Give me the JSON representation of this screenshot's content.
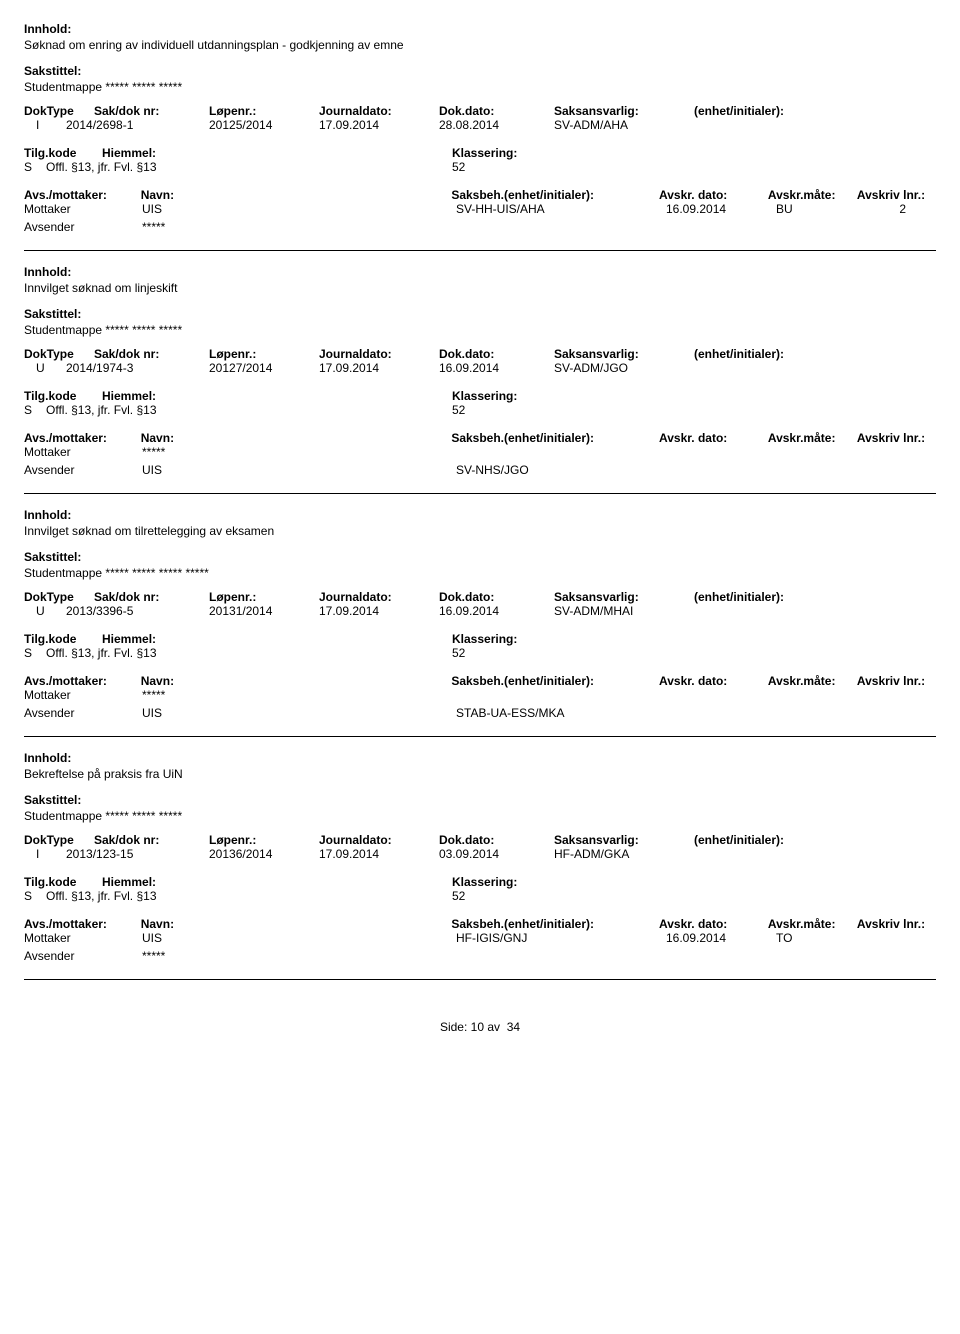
{
  "labels": {
    "innhold": "Innhold:",
    "sakstittel": "Sakstittel:",
    "doktype": "DokType",
    "sakdok": "Sak/dok nr:",
    "lopenr": "Løpenr.:",
    "journaldato": "Journaldato:",
    "dokdato": "Dok.dato:",
    "saksansvarlig": "Saksansvarlig:",
    "enhet": "(enhet/initialer):",
    "tilgkode": "Tilg.kode",
    "hjemmel": "Hiemmel:",
    "klassering": "Klassering:",
    "avsmottaker": "Avs./mottaker:",
    "navn": "Navn:",
    "saksbeh": "Saksbeh.(enhet/initialer):",
    "avskrdato": "Avskr. dato:",
    "avskrmate": "Avskr.måte:",
    "avskrlnr": "Avskriv lnr.:",
    "mottaker": "Mottaker",
    "avsender": "Avsender"
  },
  "records": [
    {
      "innhold": "Søknad om enring av individuell utdanningsplan - godkjenning av emne",
      "sakstittel": "Studentmappe ***** ***** *****",
      "doktype": "I",
      "sakdok": "2014/2698-1",
      "lopenr": "20125/2014",
      "journaldato": "17.09.2014",
      "dokdato": "28.08.2014",
      "saksansvarlig": "SV-ADM/AHA",
      "tilgkode": "S",
      "hjemmel": "Offl. §13, jfr. Fvl. §13",
      "klassering": "52",
      "parties": [
        {
          "role": "Mottaker",
          "navn": "UIS",
          "saksbeh": "SV-HH-UIS/AHA",
          "avskrdato": "16.09.2014",
          "avskrmate": "BU",
          "avskrlnr": "2"
        },
        {
          "role": "Avsender",
          "navn": "*****",
          "saksbeh": "",
          "avskrdato": "",
          "avskrmate": "",
          "avskrlnr": ""
        }
      ]
    },
    {
      "innhold": "Innvilget søknad om linjeskift",
      "sakstittel": "Studentmappe ***** ***** *****",
      "doktype": "U",
      "sakdok": "2014/1974-3",
      "lopenr": "20127/2014",
      "journaldato": "17.09.2014",
      "dokdato": "16.09.2014",
      "saksansvarlig": "SV-ADM/JGO",
      "tilgkode": "S",
      "hjemmel": "Offl. §13, jfr. Fvl. §13",
      "klassering": "52",
      "parties": [
        {
          "role": "Mottaker",
          "navn": "*****",
          "saksbeh": "",
          "avskrdato": "",
          "avskrmate": "",
          "avskrlnr": ""
        },
        {
          "role": "Avsender",
          "navn": "UIS",
          "saksbeh": "SV-NHS/JGO",
          "avskrdato": "",
          "avskrmate": "",
          "avskrlnr": ""
        }
      ]
    },
    {
      "innhold": "Innvilget søknad om tilrettelegging av eksamen",
      "sakstittel": "Studentmappe ***** ***** ***** *****",
      "doktype": "U",
      "sakdok": "2013/3396-5",
      "lopenr": "20131/2014",
      "journaldato": "17.09.2014",
      "dokdato": "16.09.2014",
      "saksansvarlig": "SV-ADM/MHAI",
      "tilgkode": "S",
      "hjemmel": "Offl. §13, jfr. Fvl. §13",
      "klassering": "52",
      "parties": [
        {
          "role": "Mottaker",
          "navn": "*****",
          "saksbeh": "",
          "avskrdato": "",
          "avskrmate": "",
          "avskrlnr": ""
        },
        {
          "role": "Avsender",
          "navn": "UIS",
          "saksbeh": "STAB-UA-ESS/MKA",
          "avskrdato": "",
          "avskrmate": "",
          "avskrlnr": ""
        }
      ]
    },
    {
      "innhold": "Bekreftelse på praksis fra UiN",
      "sakstittel": "Studentmappe ***** ***** *****",
      "doktype": "I",
      "sakdok": "2013/123-15",
      "lopenr": "20136/2014",
      "journaldato": "17.09.2014",
      "dokdato": "03.09.2014",
      "saksansvarlig": "HF-ADM/GKA",
      "tilgkode": "S",
      "hjemmel": "Offl. §13, jfr. Fvl. §13",
      "klassering": "52",
      "parties": [
        {
          "role": "Mottaker",
          "navn": "UIS",
          "saksbeh": "HF-IGIS/GNJ",
          "avskrdato": "16.09.2014",
          "avskrmate": "TO",
          "avskrlnr": ""
        },
        {
          "role": "Avsender",
          "navn": "*****",
          "saksbeh": "",
          "avskrdato": "",
          "avskrmate": "",
          "avskrlnr": ""
        }
      ]
    }
  ],
  "footer": {
    "side_label": "Side:",
    "page": "10",
    "av": "av",
    "total": "34"
  }
}
